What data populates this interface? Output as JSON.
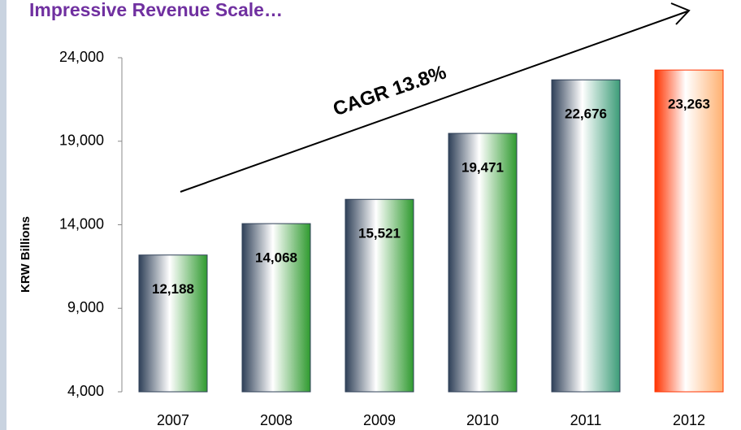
{
  "chart_data": {
    "type": "bar",
    "title": "Impressive Revenue Scale…",
    "y_label": "KRW Billions",
    "annotation": "CAGR 13.8%",
    "categories": [
      "2007",
      "2008",
      "2009",
      "2010",
      "2011",
      "2012"
    ],
    "values": [
      12188,
      14068,
      15521,
      19471,
      22676,
      23263
    ],
    "value_labels": [
      "12,188",
      "14,068",
      "15,521",
      "19,471",
      "22,676",
      "23,263"
    ],
    "bar_gradients": [
      [
        "#2f4058",
        "#2f9a2f"
      ],
      [
        "#2f4058",
        "#2f9a2f"
      ],
      [
        "#2f4058",
        "#2f9a2f"
      ],
      [
        "#2f4058",
        "#2f9a2f"
      ],
      [
        "#2f4058",
        "#3c9c78"
      ],
      [
        "#ff3300",
        "#ffb070"
      ]
    ],
    "ylim": [
      4000,
      24000
    ],
    "yticks": [
      {
        "value": 4000,
        "label": "4,000"
      },
      {
        "value": 9000,
        "label": "9,000"
      },
      {
        "value": 14000,
        "label": "14,000"
      },
      {
        "value": 19000,
        "label": "19,000"
      },
      {
        "value": 24000,
        "label": "24,000"
      }
    ],
    "grid": false
  }
}
